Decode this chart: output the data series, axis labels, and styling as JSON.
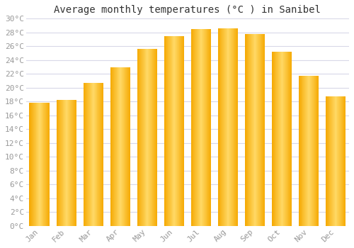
{
  "title": "Average monthly temperatures (°C ) in Sanibel",
  "months": [
    "Jan",
    "Feb",
    "Mar",
    "Apr",
    "May",
    "Jun",
    "Jul",
    "Aug",
    "Sep",
    "Oct",
    "Nov",
    "Dec"
  ],
  "values": [
    17.8,
    18.2,
    20.7,
    23.0,
    25.6,
    27.5,
    28.5,
    28.6,
    27.8,
    25.2,
    21.7,
    18.7
  ],
  "bar_color_center": "#FFD966",
  "bar_color_edge": "#F5A800",
  "ylim": [
    0,
    30
  ],
  "ytick_step": 2,
  "background_color": "#ffffff",
  "grid_color": "#d8d8e8",
  "title_fontsize": 10,
  "tick_fontsize": 8,
  "tick_color": "#999999",
  "title_color": "#333333",
  "font_family": "monospace",
  "bar_width": 0.75,
  "figsize": [
    5.0,
    3.5
  ],
  "dpi": 100
}
